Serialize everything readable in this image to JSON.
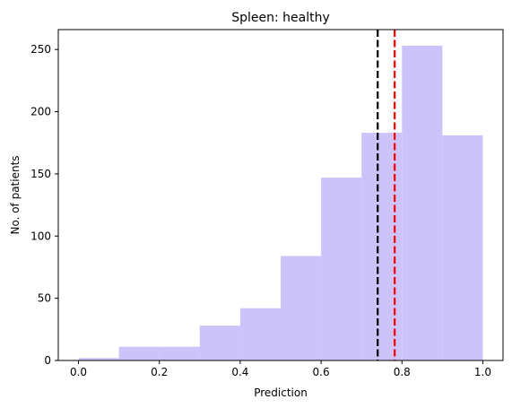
{
  "chart_data": {
    "type": "histogram",
    "title": "Spleen: healthy",
    "xlabel": "Prediction",
    "ylabel": "No. of patients",
    "bins": [
      {
        "x0": 0.0,
        "x1": 0.1,
        "count": 2
      },
      {
        "x0": 0.1,
        "x1": 0.2,
        "count": 11
      },
      {
        "x0": 0.2,
        "x1": 0.3,
        "count": 11
      },
      {
        "x0": 0.3,
        "x1": 0.4,
        "count": 28
      },
      {
        "x0": 0.4,
        "x1": 0.5,
        "count": 42
      },
      {
        "x0": 0.5,
        "x1": 0.6,
        "count": 84
      },
      {
        "x0": 0.6,
        "x1": 0.7,
        "count": 147
      },
      {
        "x0": 0.7,
        "x1": 0.8,
        "count": 183
      },
      {
        "x0": 0.8,
        "x1": 0.9,
        "count": 253
      },
      {
        "x0": 0.9,
        "x1": 1.0,
        "count": 181
      }
    ],
    "xlim": [
      -0.05,
      1.05
    ],
    "ylim": [
      0,
      266
    ],
    "x_ticks": [
      0.0,
      0.2,
      0.4,
      0.6,
      0.8,
      1.0
    ],
    "x_tick_labels": [
      "0.0",
      "0.2",
      "0.4",
      "0.6",
      "0.8",
      "1.0"
    ],
    "y_ticks": [
      0,
      50,
      100,
      150,
      200,
      250
    ],
    "y_tick_labels": [
      "0",
      "50",
      "100",
      "150",
      "200",
      "250"
    ],
    "vlines": [
      {
        "x": 0.74,
        "color": "#000000",
        "style": "dashed"
      },
      {
        "x": 0.782,
        "color": "#ff0000",
        "style": "dashed"
      }
    ],
    "bar_color": "#cbc3f9",
    "grid": false
  }
}
